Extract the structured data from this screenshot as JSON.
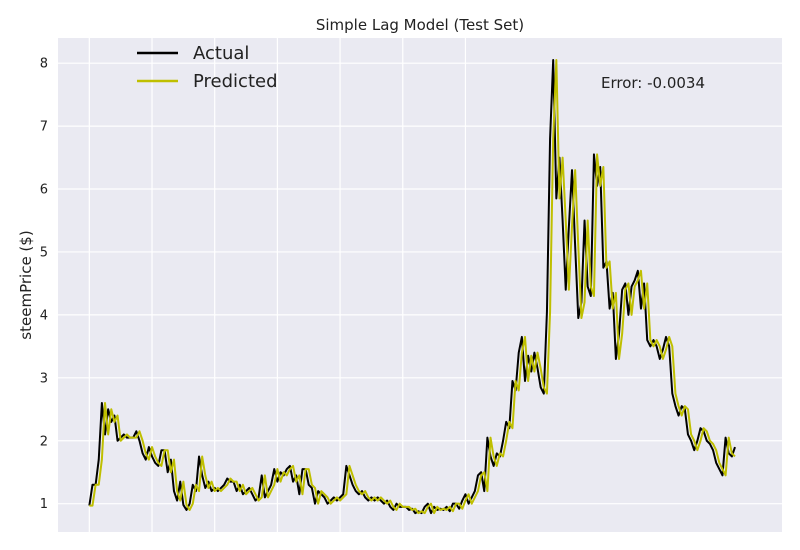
{
  "chart_data": {
    "type": "line",
    "title": "Simple Lag Model (Test Set)",
    "xlabel": "",
    "ylabel": "steemPrice ($)",
    "xlim": [
      -10,
      221
    ],
    "ylim": [
      0.55,
      8.4
    ],
    "yticks": [
      1,
      2,
      3,
      4,
      5,
      6,
      7,
      8
    ],
    "xgrid": [
      0,
      20,
      40,
      60,
      80,
      100,
      120
    ],
    "grid": true,
    "legend": "top-left",
    "annotation": "Error: -0.0034",
    "colors": {
      "background": "#eaeaf2",
      "grid": "#ffffff",
      "actual": "#000000",
      "predicted": "#bfbf00"
    },
    "series": [
      {
        "name": "Actual",
        "values": [
          0.97,
          1.3,
          1.3,
          1.7,
          2.6,
          2.1,
          2.5,
          2.3,
          2.4,
          2.0,
          2.05,
          2.1,
          2.05,
          2.05,
          2.05,
          2.15,
          2.0,
          1.8,
          1.7,
          1.9,
          1.75,
          1.65,
          1.6,
          1.85,
          1.85,
          1.5,
          1.7,
          1.2,
          1.05,
          1.35,
          0.98,
          0.9,
          1.0,
          1.3,
          1.2,
          1.75,
          1.45,
          1.25,
          1.35,
          1.2,
          1.25,
          1.2,
          1.25,
          1.3,
          1.4,
          1.35,
          1.35,
          1.2,
          1.3,
          1.15,
          1.2,
          1.25,
          1.15,
          1.05,
          1.1,
          1.45,
          1.1,
          1.2,
          1.3,
          1.55,
          1.35,
          1.5,
          1.45,
          1.55,
          1.6,
          1.35,
          1.45,
          1.15,
          1.55,
          1.55,
          1.3,
          1.25,
          1.0,
          1.2,
          1.15,
          1.1,
          1.0,
          1.05,
          1.1,
          1.05,
          1.1,
          1.15,
          1.6,
          1.45,
          1.3,
          1.2,
          1.15,
          1.2,
          1.1,
          1.05,
          1.1,
          1.05,
          1.1,
          1.05,
          1.0,
          1.05,
          0.95,
          0.9,
          1.0,
          0.95,
          0.95,
          0.95,
          0.9,
          0.92,
          0.85,
          0.88,
          0.85,
          0.95,
          1.0,
          0.85,
          0.95,
          0.9,
          0.92,
          0.9,
          0.95,
          0.88,
          1.0,
          1.0,
          0.92,
          1.05,
          1.15,
          1.0,
          1.1,
          1.2,
          1.45,
          1.5,
          1.2,
          2.05,
          1.75,
          1.6,
          1.8,
          1.75,
          2.0,
          2.3,
          2.2,
          2.95,
          2.8,
          3.4,
          3.65,
          2.95,
          3.35,
          3.1,
          3.4,
          3.15,
          2.85,
          2.75,
          4.05,
          6.8,
          8.05,
          5.85,
          6.5,
          5.5,
          4.4,
          5.4,
          6.3,
          5.1,
          3.95,
          4.2,
          5.5,
          4.45,
          4.3,
          6.55,
          6.05,
          6.35,
          4.75,
          4.85,
          4.1,
          4.35,
          3.3,
          3.7,
          4.4,
          4.5,
          4.0,
          4.45,
          4.55,
          4.7,
          4.1,
          4.5,
          3.6,
          3.5,
          3.6,
          3.5,
          3.3,
          3.45,
          3.65,
          3.5,
          2.75,
          2.55,
          2.4,
          2.55,
          2.5,
          2.1,
          2.0,
          1.85,
          2.0,
          2.2,
          2.15,
          2.0,
          1.95,
          1.85,
          1.65,
          1.55,
          1.45,
          2.05,
          1.8,
          1.75,
          1.9
        ]
      },
      {
        "name": "Predicted",
        "values": [
          0.97,
          0.97,
          1.3,
          1.3,
          1.7,
          2.6,
          2.1,
          2.5,
          2.3,
          2.4,
          2.0,
          2.05,
          2.1,
          2.05,
          2.05,
          2.05,
          2.15,
          2.0,
          1.8,
          1.7,
          1.9,
          1.75,
          1.65,
          1.6,
          1.85,
          1.85,
          1.5,
          1.7,
          1.2,
          1.05,
          1.35,
          0.98,
          0.9,
          1.0,
          1.3,
          1.2,
          1.75,
          1.45,
          1.25,
          1.35,
          1.2,
          1.25,
          1.2,
          1.25,
          1.3,
          1.4,
          1.35,
          1.35,
          1.2,
          1.3,
          1.15,
          1.2,
          1.25,
          1.15,
          1.05,
          1.1,
          1.45,
          1.1,
          1.2,
          1.3,
          1.55,
          1.35,
          1.5,
          1.45,
          1.55,
          1.6,
          1.35,
          1.45,
          1.15,
          1.55,
          1.55,
          1.3,
          1.25,
          1.0,
          1.2,
          1.15,
          1.1,
          1.0,
          1.05,
          1.1,
          1.05,
          1.1,
          1.15,
          1.6,
          1.45,
          1.3,
          1.2,
          1.15,
          1.2,
          1.1,
          1.05,
          1.1,
          1.05,
          1.1,
          1.05,
          1.0,
          1.05,
          0.95,
          0.9,
          1.0,
          0.95,
          0.95,
          0.95,
          0.9,
          0.92,
          0.85,
          0.88,
          0.85,
          0.95,
          1.0,
          0.85,
          0.95,
          0.9,
          0.92,
          0.9,
          0.95,
          0.88,
          1.0,
          1.0,
          0.92,
          1.05,
          1.15,
          1.0,
          1.1,
          1.2,
          1.45,
          1.5,
          1.2,
          2.05,
          1.75,
          1.6,
          1.8,
          1.75,
          2.0,
          2.3,
          2.2,
          2.95,
          2.8,
          3.4,
          3.65,
          2.95,
          3.35,
          3.1,
          3.4,
          3.15,
          2.85,
          2.75,
          4.05,
          6.8,
          8.05,
          5.85,
          6.5,
          5.5,
          4.4,
          5.4,
          6.3,
          5.1,
          3.95,
          4.2,
          5.5,
          4.45,
          4.3,
          6.55,
          6.05,
          6.35,
          4.75,
          4.85,
          4.1,
          4.35,
          3.3,
          3.7,
          4.4,
          4.5,
          4.0,
          4.45,
          4.55,
          4.7,
          4.1,
          4.5,
          3.6,
          3.5,
          3.6,
          3.5,
          3.3,
          3.45,
          3.65,
          3.5,
          2.75,
          2.55,
          2.4,
          2.55,
          2.5,
          2.1,
          2.0,
          1.85,
          2.0,
          2.2,
          2.15,
          2.0,
          1.95,
          1.85,
          1.65,
          1.55,
          1.45,
          2.05,
          1.8,
          1.75
        ]
      }
    ]
  }
}
